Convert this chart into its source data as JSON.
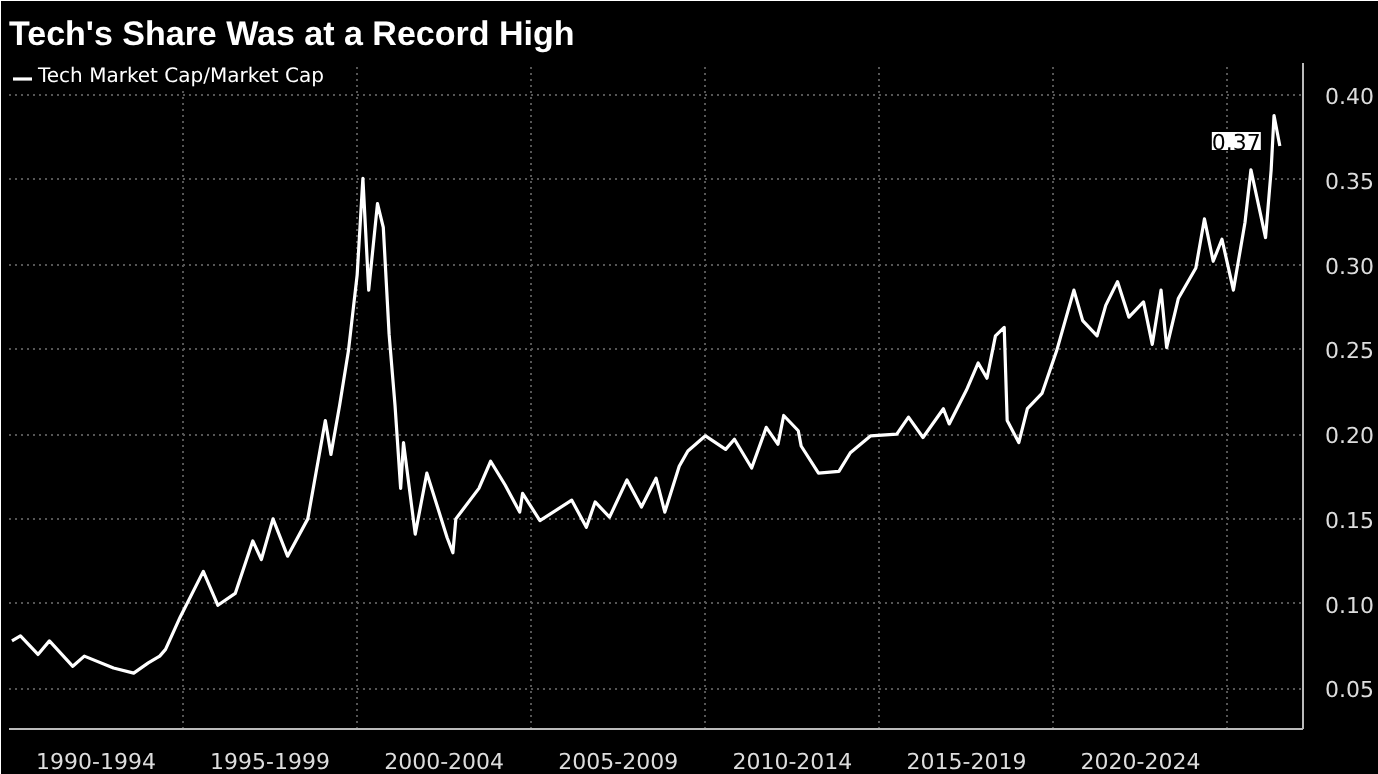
{
  "chart_data": {
    "type": "line",
    "title": "Tech's Share Was at a Record High",
    "x": [
      "1990-02",
      "1990-05",
      "1990-11",
      "1991-03",
      "1991-11",
      "1992-03",
      "1993-01",
      "1993-08",
      "1994-01",
      "1994-05",
      "1994-07",
      "1994-12",
      "1995-08",
      "1996-01",
      "1996-07",
      "1997-01",
      "1997-04",
      "1997-08",
      "1998-01",
      "1998-08",
      "1999-02",
      "1999-04",
      "1999-07",
      "1999-10",
      "2000-01",
      "2000-03",
      "2000-05",
      "2000-08",
      "2000-10",
      "2000-12",
      "2001-02",
      "2001-04",
      "2001-05",
      "2001-09",
      "2002-01",
      "2002-08",
      "2002-10",
      "2002-11",
      "2003-07",
      "2003-11",
      "2004-04",
      "2004-09",
      "2004-10",
      "2005-04",
      "2006-03",
      "2006-08",
      "2006-11",
      "2007-04",
      "2007-10",
      "2008-03",
      "2008-08",
      "2008-11",
      "2009-04",
      "2009-07",
      "2010-01",
      "2010-08",
      "2010-11",
      "2011-05",
      "2011-10",
      "2012-02",
      "2012-04",
      "2012-09",
      "2012-10",
      "2013-04",
      "2013-11",
      "2014-03",
      "2014-10",
      "2015-07",
      "2015-11",
      "2016-04",
      "2016-11",
      "2017-01",
      "2017-07",
      "2017-11",
      "2018-02",
      "2018-05",
      "2018-08",
      "2018-09",
      "2019-01",
      "2019-04",
      "2019-09",
      "2020-02",
      "2020-08",
      "2020-11",
      "2021-04",
      "2021-07",
      "2021-11",
      "2022-03",
      "2022-08",
      "2022-11",
      "2023-02",
      "2023-04",
      "2023-08",
      "2024-02",
      "2024-05",
      "2024-08",
      "2024-11",
      "2025-03",
      "2025-07",
      "2025-09",
      "2026-02",
      "2026-04",
      "2026-05",
      "2026-07"
    ],
    "series": [
      {
        "name": "Tech Market Cap/Market Cap",
        "color": "#ffffff",
        "values": [
          0.078,
          0.081,
          0.07,
          0.078,
          0.063,
          0.069,
          0.062,
          0.059,
          0.065,
          0.069,
          0.073,
          0.092,
          0.119,
          0.099,
          0.106,
          0.137,
          0.126,
          0.15,
          0.128,
          0.15,
          0.208,
          0.188,
          0.217,
          0.249,
          0.294,
          0.351,
          0.285,
          0.336,
          0.322,
          0.259,
          0.217,
          0.168,
          0.195,
          0.141,
          0.177,
          0.139,
          0.13,
          0.15,
          0.168,
          0.184,
          0.17,
          0.154,
          0.165,
          0.149,
          0.161,
          0.145,
          0.16,
          0.151,
          0.173,
          0.157,
          0.174,
          0.154,
          0.181,
          0.19,
          0.199,
          0.191,
          0.197,
          0.18,
          0.204,
          0.194,
          0.211,
          0.202,
          0.193,
          0.177,
          0.178,
          0.189,
          0.199,
          0.2,
          0.21,
          0.198,
          0.215,
          0.206,
          0.226,
          0.242,
          0.233,
          0.258,
          0.263,
          0.208,
          0.195,
          0.215,
          0.224,
          0.249,
          0.285,
          0.267,
          0.258,
          0.276,
          0.29,
          0.269,
          0.278,
          0.253,
          0.285,
          0.251,
          0.28,
          0.298,
          0.327,
          0.302,
          0.315,
          0.285,
          0.325,
          0.356,
          0.316,
          0.356,
          0.388,
          0.37
        ]
      }
    ],
    "xlim": [
      "1990-01",
      "2027-03"
    ],
    "xticks": [
      {
        "value": "1992-07",
        "label": "1990-1994"
      },
      {
        "value": "1995-01",
        "label": null
      },
      {
        "value": "1997-07",
        "label": "1995-1999"
      },
      {
        "value": "2000-01",
        "label": null
      },
      {
        "value": "2002-07",
        "label": "2000-2004"
      },
      {
        "value": "2005-01",
        "label": null
      },
      {
        "value": "2007-07",
        "label": "2005-2009"
      },
      {
        "value": "2010-01",
        "label": null
      },
      {
        "value": "2012-07",
        "label": "2010-2014"
      },
      {
        "value": "2015-01",
        "label": null
      },
      {
        "value": "2017-07",
        "label": "2015-2019"
      },
      {
        "value": "2020-01",
        "label": null
      },
      {
        "value": "2022-07",
        "label": "2020-2024"
      },
      {
        "value": "2025-01",
        "label": null
      }
    ],
    "ylim": [
      0.026,
      0.419
    ],
    "yticks": [
      0.05,
      {
        "value": 0.1,
        "label": "0.10"
      },
      0.15,
      {
        "value": 0.2,
        "label": "0.20"
      },
      0.25,
      {
        "value": 0.3,
        "label": "0.30"
      },
      0.35,
      {
        "value": 0.4,
        "label": "0.40"
      }
    ],
    "annotations": [
      {
        "text": "0.37",
        "x": "2026-07",
        "y": 0.37
      }
    ],
    "grid": true,
    "legend": "top left",
    "line_style": "solid"
  }
}
